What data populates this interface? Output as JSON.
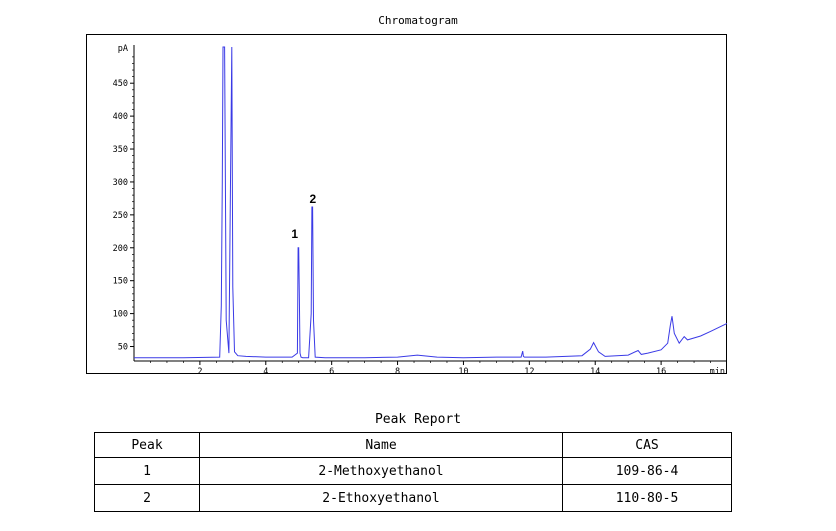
{
  "chart_data": {
    "type": "line",
    "title": "Chromatogram",
    "y_unit": "pA",
    "x_unit": "min",
    "xlim": [
      0,
      18
    ],
    "ylim": [
      28,
      505
    ],
    "x_ticks": [
      "2",
      "4",
      "6",
      "8",
      "10",
      "12",
      "14",
      "16"
    ],
    "y_ticks": [
      "50",
      "100",
      "150",
      "200",
      "250",
      "300",
      "350",
      "400",
      "450"
    ],
    "grid": false,
    "line_color": "#3a3ae6",
    "series": [
      {
        "x": [
          0.0,
          1.5,
          2.6,
          2.65,
          2.68,
          2.7,
          2.72,
          2.75,
          2.8,
          2.88,
          2.93,
          2.97,
          3.0,
          3.05,
          3.15,
          3.4,
          4.0,
          4.8,
          4.96,
          4.98,
          5.0,
          5.02,
          5.04,
          5.07,
          5.12,
          5.3,
          5.38,
          5.4,
          5.42,
          5.45,
          5.5,
          5.8,
          7.0,
          8.0,
          8.6,
          9.2,
          10.0,
          11.0,
          11.75,
          11.8,
          11.82,
          11.85,
          12.5,
          13.6,
          13.85,
          13.95,
          14.1,
          14.3,
          15.0,
          15.3,
          15.4,
          15.6,
          16.0,
          16.2,
          16.28,
          16.33,
          16.4,
          16.55,
          16.7,
          16.8,
          17.2,
          17.5,
          18.0
        ],
        "y": [
          33,
          33,
          34,
          112,
          300,
          505,
          505,
          505,
          90,
          40,
          300,
          505,
          140,
          42,
          36,
          35,
          34,
          34,
          40,
          200,
          200,
          120,
          40,
          34,
          33,
          33,
          100,
          262,
          262,
          90,
          34,
          33,
          33,
          34,
          37,
          34,
          33,
          34,
          34,
          43,
          35,
          34,
          34,
          36,
          46,
          56,
          42,
          35,
          37,
          44,
          38,
          40,
          45,
          55,
          82,
          96,
          70,
          55,
          65,
          60,
          66,
          73,
          85
        ]
      }
    ],
    "annotations": [
      {
        "label": "1",
        "x": 4.88,
        "y": 215
      },
      {
        "label": "2",
        "x": 5.43,
        "y": 268
      }
    ]
  },
  "report": {
    "title": "Peak Report",
    "headers": {
      "peak": "Peak",
      "name": "Name",
      "cas": "CAS"
    },
    "rows": [
      {
        "peak": "1",
        "name": "2-Methoxyethanol",
        "cas": "109-86-4"
      },
      {
        "peak": "2",
        "name": "2-Ethoxyethanol",
        "cas": "110-80-5"
      }
    ]
  }
}
